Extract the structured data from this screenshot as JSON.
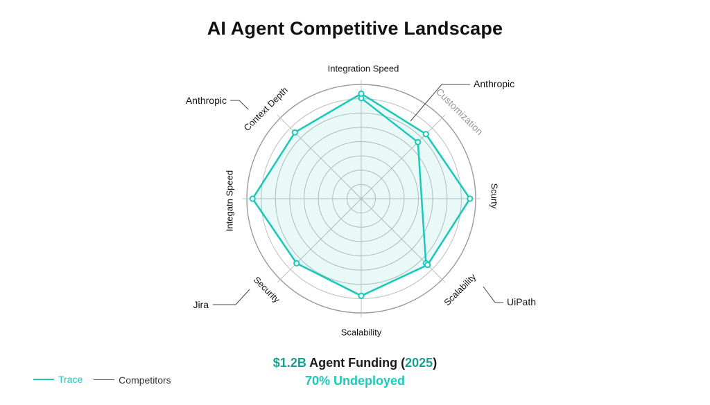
{
  "title": "AI Agent Competitive Landscape",
  "chart_data": {
    "type": "radar",
    "axes": [
      "Integration Speed",
      "Customization",
      "Scurty",
      "Scalability",
      "Scalability",
      "Security",
      "Integatn Speed",
      "Context Depth"
    ],
    "rmax": 10,
    "rings": 8,
    "series": [
      {
        "name": "Trace",
        "color": "#1cc9b9",
        "values": [
          9.2,
          8.0,
          9.5,
          8.2,
          8.5,
          8.0,
          9.5,
          8.2
        ]
      },
      {
        "name": "Competitors",
        "color": "#1cc9b9",
        "values": [
          8.8,
          7.0,
          null,
          8.0,
          null,
          null,
          null,
          null
        ]
      }
    ]
  },
  "callouts": {
    "anthropic_left": "Anthropic",
    "anthropic_right": "Anthropic",
    "jira": "Jira",
    "uipath": "UiPath"
  },
  "legend": {
    "trace": "Trace",
    "competitors": "Competitors"
  },
  "funding": {
    "amount": "$1.2B",
    "label": " Agent Funding (",
    "year": "2025",
    "close": ")",
    "undeployed": "70% Undeployed"
  }
}
